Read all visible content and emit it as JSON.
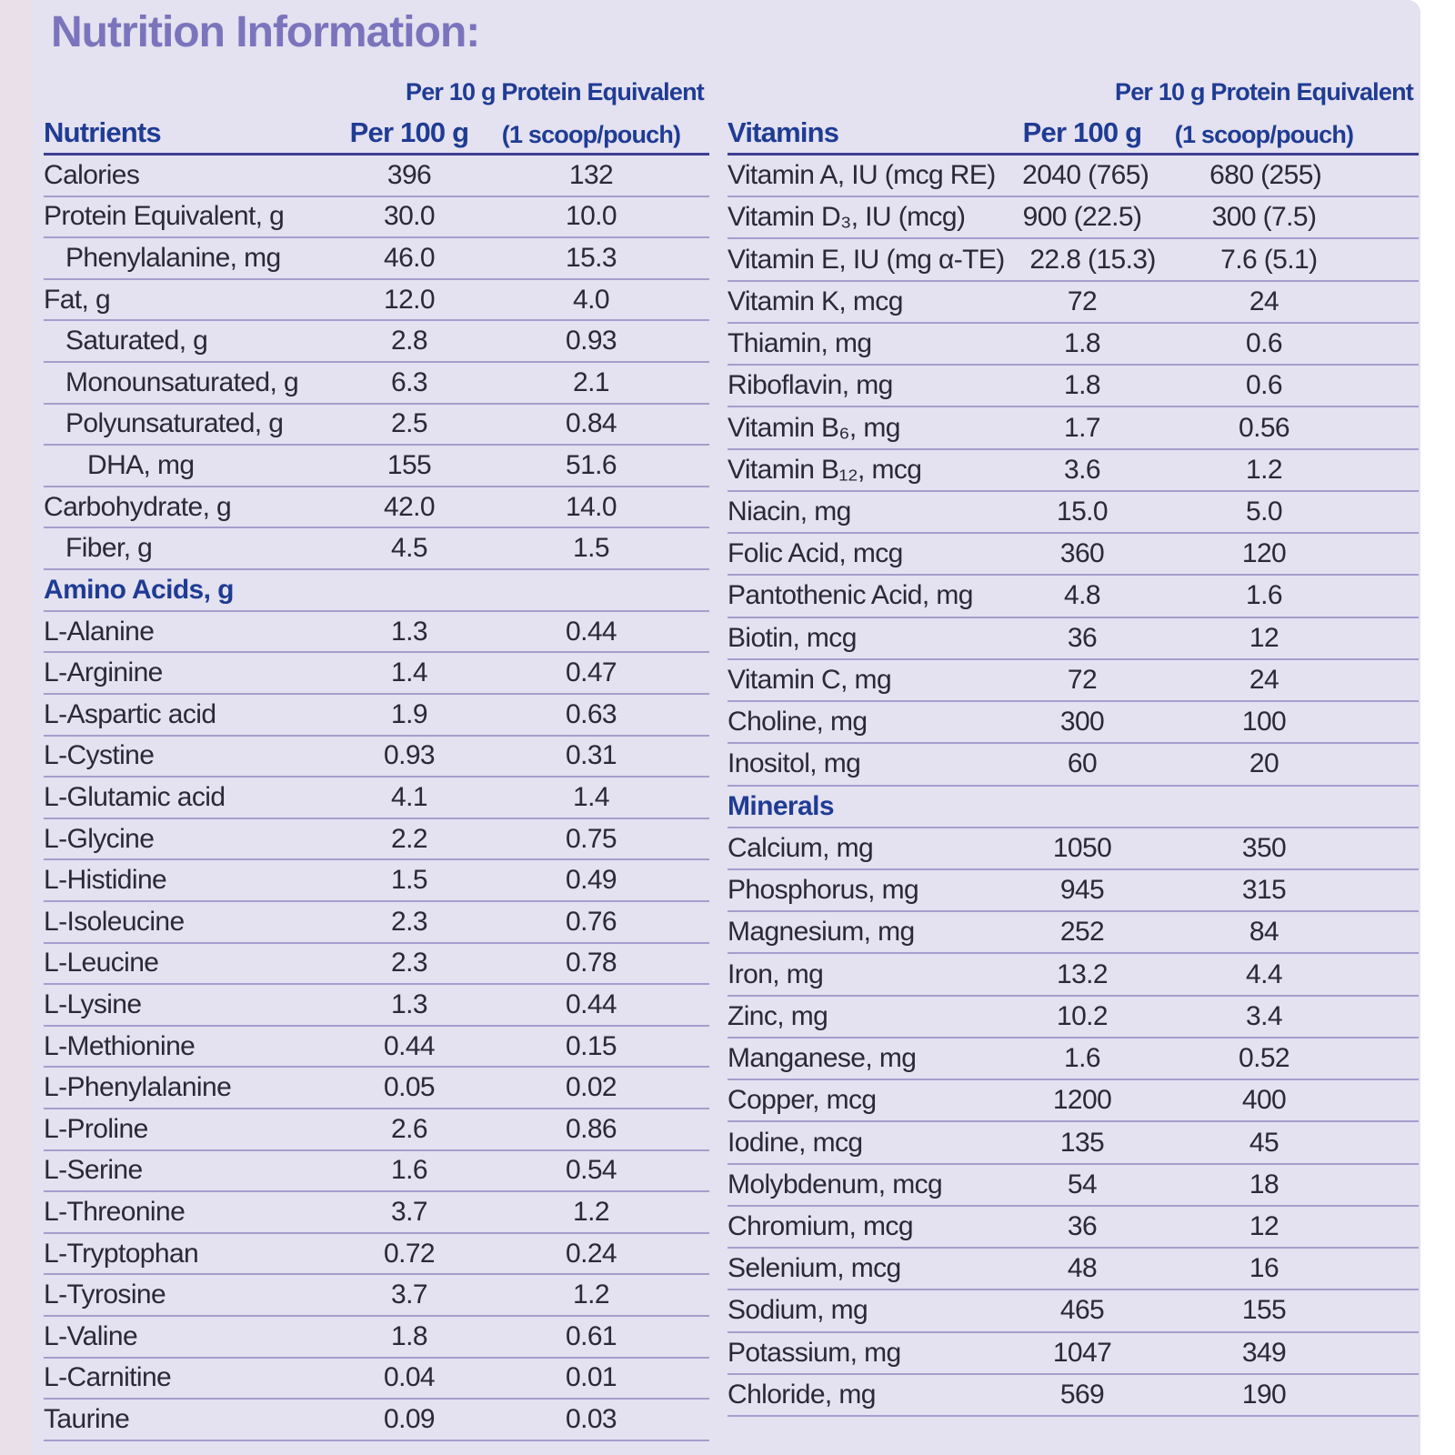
{
  "title": "Nutrition Information:",
  "colors": {
    "page_bg": "#ffffff",
    "strip_bg": "#e9e0ea",
    "panel_bg": "#e4e1f0",
    "title_color": "#7b74bd",
    "header_blue": "#1f3c94",
    "body_text": "#2b2936",
    "divider": "#a59ecd",
    "header_rule": "#3d3f92"
  },
  "left_table": {
    "header": {
      "top": "Per 10 g Protein Equivalent",
      "col1": "Nutrients",
      "col2": "Per 100 g",
      "col3": "(1 scoop/pouch)"
    },
    "rows": [
      {
        "label": "Calories",
        "per100": "396",
        "per10": "132"
      },
      {
        "label": "Protein Equivalent, g",
        "per100": "30.0",
        "per10": "10.0"
      },
      {
        "label": "Phenylalanine, mg",
        "indent": 1,
        "per100": "46.0",
        "per10": "15.3"
      },
      {
        "label": "Fat, g",
        "per100": "12.0",
        "per10": "4.0"
      },
      {
        "label": "Saturated, g",
        "indent": 1,
        "per100": "2.8",
        "per10": "0.93"
      },
      {
        "label": "Monounsaturated, g",
        "indent": 1,
        "per100": "6.3",
        "per10": "2.1"
      },
      {
        "label": "Polyunsaturated, g",
        "indent": 1,
        "per100": "2.5",
        "per10": "0.84"
      },
      {
        "label": "DHA, mg",
        "indent": 2,
        "per100": "155",
        "per10": "51.6"
      },
      {
        "label": "Carbohydrate, g",
        "per100": "42.0",
        "per10": "14.0"
      },
      {
        "label": "Fiber, g",
        "indent": 1,
        "per100": "4.5",
        "per10": "1.5"
      },
      {
        "label": "Amino Acids, g",
        "section": true
      },
      {
        "label": "L-Alanine",
        "per100": "1.3",
        "per10": "0.44"
      },
      {
        "label": "L-Arginine",
        "per100": "1.4",
        "per10": "0.47"
      },
      {
        "label": "L-Aspartic acid",
        "per100": "1.9",
        "per10": "0.63"
      },
      {
        "label": "L-Cystine",
        "per100": "0.93",
        "per10": "0.31"
      },
      {
        "label": "L-Glutamic acid",
        "per100": "4.1",
        "per10": "1.4"
      },
      {
        "label": "L-Glycine",
        "per100": "2.2",
        "per10": "0.75"
      },
      {
        "label": "L-Histidine",
        "per100": "1.5",
        "per10": "0.49"
      },
      {
        "label": "L-Isoleucine",
        "per100": "2.3",
        "per10": "0.76"
      },
      {
        "label": "L-Leucine",
        "per100": "2.3",
        "per10": "0.78"
      },
      {
        "label": "L-Lysine",
        "per100": "1.3",
        "per10": "0.44"
      },
      {
        "label": "L-Methionine",
        "per100": "0.44",
        "per10": "0.15"
      },
      {
        "label": "L-Phenylalanine",
        "per100": "0.05",
        "per10": "0.02"
      },
      {
        "label": "L-Proline",
        "per100": "2.6",
        "per10": "0.86"
      },
      {
        "label": "L-Serine",
        "per100": "1.6",
        "per10": "0.54"
      },
      {
        "label": "L-Threonine",
        "per100": "3.7",
        "per10": "1.2"
      },
      {
        "label": "L-Tryptophan",
        "per100": "0.72",
        "per10": "0.24"
      },
      {
        "label": "L-Tyrosine",
        "per100": "3.7",
        "per10": "1.2"
      },
      {
        "label": "L-Valine",
        "per100": "1.8",
        "per10": "0.61"
      },
      {
        "label": "L-Carnitine",
        "per100": "0.04",
        "per10": "0.01"
      },
      {
        "label": "Taurine",
        "per100": "0.09",
        "per10": "0.03"
      }
    ]
  },
  "right_table": {
    "header": {
      "top": "Per 10 g Protein Equivalent",
      "col1": "Vitamins",
      "col2": "Per 100 g",
      "col3": "(1 scoop/pouch)"
    },
    "rows": [
      {
        "label": "Vitamin A, IU (mcg RE)",
        "per100": "2040 (765)",
        "per10": "680 (255)"
      },
      {
        "label": "Vitamin D₃, IU (mcg)",
        "per100": "900 (22.5)",
        "per10": "300 (7.5)"
      },
      {
        "label": "Vitamin E, IU (mg α-TE)",
        "per100": "22.8 (15.3)",
        "per10": "7.6 (5.1)"
      },
      {
        "label": "Vitamin K, mcg",
        "per100": "72",
        "per10": "24"
      },
      {
        "label": "Thiamin, mg",
        "per100": "1.8",
        "per10": "0.6"
      },
      {
        "label": "Riboflavin, mg",
        "per100": "1.8",
        "per10": "0.6"
      },
      {
        "label": "Vitamin B₆, mg",
        "per100": "1.7",
        "per10": "0.56"
      },
      {
        "label": "Vitamin B₁₂, mcg",
        "per100": "3.6",
        "per10": "1.2"
      },
      {
        "label": "Niacin, mg",
        "per100": "15.0",
        "per10": "5.0"
      },
      {
        "label": "Folic Acid, mcg",
        "per100": "360",
        "per10": "120"
      },
      {
        "label": "Pantothenic Acid, mg",
        "per100": "4.8",
        "per10": "1.6"
      },
      {
        "label": "Biotin, mcg",
        "per100": "36",
        "per10": "12"
      },
      {
        "label": "Vitamin C, mg",
        "per100": "72",
        "per10": "24"
      },
      {
        "label": "Choline, mg",
        "per100": "300",
        "per10": "100"
      },
      {
        "label": "Inositol, mg",
        "per100": "60",
        "per10": "20"
      },
      {
        "label": "Minerals",
        "section": true
      },
      {
        "label": "Calcium, mg",
        "per100": "1050",
        "per10": "350"
      },
      {
        "label": "Phosphorus, mg",
        "per100": "945",
        "per10": "315"
      },
      {
        "label": "Magnesium, mg",
        "per100": "252",
        "per10": "84"
      },
      {
        "label": "Iron, mg",
        "per100": "13.2",
        "per10": "4.4"
      },
      {
        "label": "Zinc, mg",
        "per100": "10.2",
        "per10": "3.4"
      },
      {
        "label": "Manganese, mg",
        "per100": "1.6",
        "per10": "0.52"
      },
      {
        "label": "Copper, mcg",
        "per100": "1200",
        "per10": "400"
      },
      {
        "label": "Iodine, mcg",
        "per100": "135",
        "per10": "45"
      },
      {
        "label": "Molybdenum, mcg",
        "per100": "54",
        "per10": "18"
      },
      {
        "label": "Chromium, mcg",
        "per100": "36",
        "per10": "12"
      },
      {
        "label": "Selenium, mcg",
        "per100": "48",
        "per10": "16"
      },
      {
        "label": "Sodium, mg",
        "per100": "465",
        "per10": "155"
      },
      {
        "label": "Potassium, mg",
        "per100": "1047",
        "per10": "349"
      },
      {
        "label": "Chloride, mg",
        "per100": "569",
        "per10": "190"
      }
    ]
  }
}
